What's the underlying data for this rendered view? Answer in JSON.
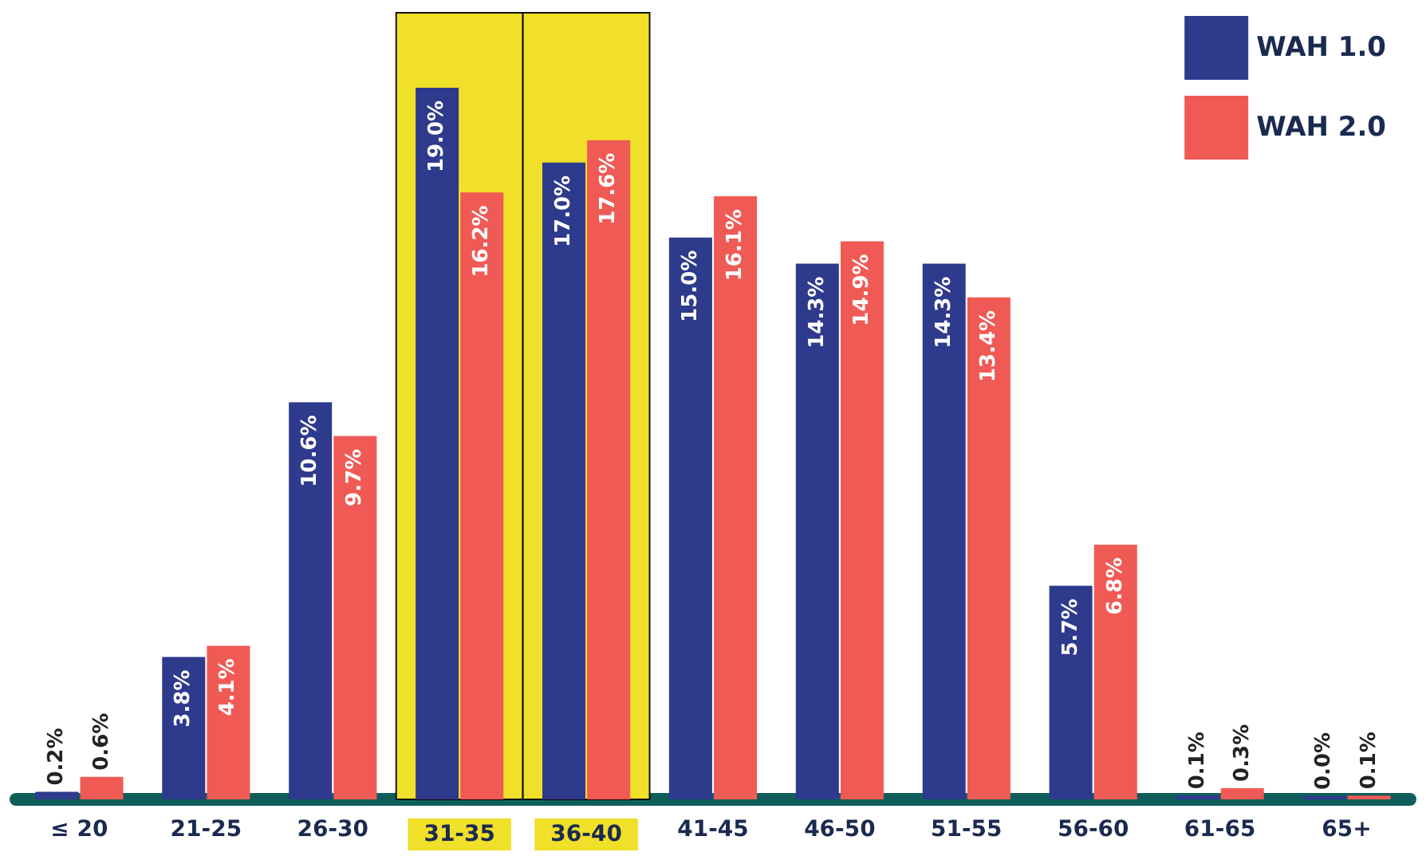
{
  "chart_data": {
    "type": "bar",
    "categories": [
      "≤ 20",
      "21-25",
      "26-30",
      "31-35",
      "36-40",
      "41-45",
      "46-50",
      "51-55",
      "56-60",
      "61-65",
      "65+"
    ],
    "series": [
      {
        "name": "WAH 1.0",
        "color": "#2e3a8c",
        "values": [
          0.2,
          3.8,
          10.6,
          19.0,
          17.0,
          15.0,
          14.3,
          14.3,
          5.7,
          0.1,
          0.0
        ],
        "value_labels": [
          "0.2%",
          "3.8%",
          "10.6%",
          "19.0%",
          "17.0%",
          "15.0%",
          "14.3%",
          "14.3%",
          "5.7%",
          "0.1%",
          "0.0%"
        ]
      },
      {
        "name": "WAH 2.0",
        "color": "#f05a55",
        "values": [
          0.6,
          4.1,
          9.7,
          16.2,
          17.6,
          16.1,
          14.9,
          13.4,
          6.8,
          0.3,
          0.1
        ],
        "value_labels": [
          "0.6%",
          "4.1%",
          "9.7%",
          "16.2%",
          "17.6%",
          "16.1%",
          "14.9%",
          "13.4%",
          "6.8%",
          "0.3%",
          "0.1%"
        ]
      }
    ],
    "bands": [
      {
        "axis": "x",
        "from": "31-35",
        "to": "31-35",
        "color": "#f0e02a"
      },
      {
        "axis": "x",
        "from": "36-40",
        "to": "36-40",
        "color": "#f0e02a"
      }
    ],
    "legend": "top right"
  }
}
